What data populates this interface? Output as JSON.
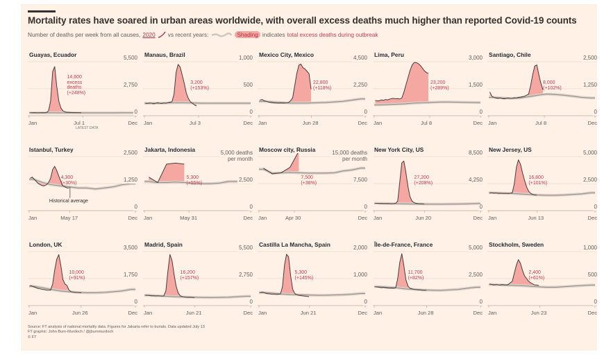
{
  "header": {
    "title": "Mortality rates have soared in urban areas worldwide, with overall excess deaths much higher than reported Covid-19 counts",
    "subtitle_prefix": "Number of deaths per week from all causes,",
    "legend_2020": "2020",
    "legend_recent": "vs recent years:",
    "legend_shading": "Shading",
    "legend_indicates": "indicates",
    "legend_excess": "total excess deaths during outbreak"
  },
  "colors": {
    "background": "#fff1e5",
    "line_2020": "#4a3a3a",
    "excess_fill": "#f4a09a",
    "annotation": "#cc3a52",
    "recent_years": "#8f8a85",
    "recent_band": "#ddd3ca"
  },
  "footer": {
    "source": "Source: FT analysis of national mortality data. Figures for Jakarta refer to burials. Data updated July 13",
    "credit": "FT graphic: John Burn-Murdoch / @jburnmurdoch",
    "copyright": "© FT"
  },
  "chart_data": [
    {
      "type": "area",
      "title": "Guayas, Ecuador",
      "yticks": [
        "5,500",
        "2,750",
        "0"
      ],
      "ylim": [
        0,
        5500
      ],
      "xticks": [
        "Jan",
        "Jul 1",
        "Dec"
      ],
      "x_note": "LATEST DATA",
      "period": "week",
      "values_2020": [
        300,
        300,
        310,
        300,
        290,
        300,
        310,
        300,
        320,
        500,
        1500,
        4500,
        5000,
        3000,
        1500,
        800,
        500,
        400,
        350,
        340,
        330,
        320,
        320,
        310,
        310,
        300
      ],
      "baseline": [
        300,
        300,
        300,
        290,
        290,
        290,
        290,
        290,
        290,
        290,
        300,
        300
      ],
      "annotation": [
        "14,600",
        "excess",
        "deaths",
        "(+248%)"
      ]
    },
    {
      "type": "area",
      "title": "Manaus, Brazil",
      "yticks": [
        "1,000",
        "500",
        "0"
      ],
      "ylim": [
        0,
        1000
      ],
      "xticks": [
        "Jan",
        "Jul 3",
        "Dec"
      ],
      "period": "week",
      "values_2020": [
        230,
        225,
        235,
        230,
        220,
        230,
        240,
        230,
        225,
        235,
        230,
        240,
        250,
        260,
        400,
        800,
        950,
        900,
        750,
        600,
        420,
        320,
        260,
        230,
        200,
        180
      ],
      "baseline": [
        230,
        230,
        235,
        240,
        240,
        235,
        230,
        230,
        230,
        230,
        230,
        230
      ],
      "annotation": [
        "3,200",
        "(+153%)"
      ]
    },
    {
      "type": "area",
      "title": "Mexico City, Mexico",
      "yticks": [
        "4,500",
        "2,250",
        "0"
      ],
      "ylim": [
        0,
        4500
      ],
      "xticks": [
        "Jan",
        "Jun 28",
        "Dec"
      ],
      "period": "week",
      "values_2020": [
        1300,
        1350,
        1250,
        1200,
        1150,
        1100,
        1080,
        1050,
        1050,
        1040,
        1050,
        1060,
        1050,
        1070,
        1100,
        1250,
        1500,
        2500,
        3500,
        4200,
        4300,
        4000,
        3900,
        3700,
        3500,
        2200
      ],
      "baseline": [
        1200,
        1150,
        1100,
        1050,
        1050,
        1050,
        1080,
        1100,
        1150,
        1200,
        1300,
        1400
      ],
      "annotation": [
        "22,800",
        "(+118%)"
      ]
    },
    {
      "type": "area",
      "title": "Lima, Peru",
      "yticks": [
        "3,000",
        "1,500",
        "0"
      ],
      "ylim": [
        0,
        3000
      ],
      "xticks": [
        "Jan",
        "Jul 8",
        "Dec"
      ],
      "period": "week",
      "values_2020": [
        850,
        820,
        830,
        880,
        850,
        900,
        880,
        920,
        950,
        960,
        940,
        950,
        930,
        980,
        1300,
        1700,
        2100,
        2500,
        2800,
        2950,
        2950,
        2900,
        2800,
        2650,
        2500,
        2400,
        2350
      ],
      "baseline": [
        600,
        620,
        640,
        660,
        700,
        720,
        740,
        760,
        760,
        750,
        740,
        730
      ],
      "annotation": [
        "23,200",
        "(+289%)"
      ]
    },
    {
      "type": "area",
      "title": "Santiago, Chile",
      "yticks": [
        "2,500",
        "1,250",
        "0"
      ],
      "ylim": [
        0,
        2500
      ],
      "xticks": [
        "Jan",
        "Jul 8",
        "Dec"
      ],
      "period": "week",
      "values_2020": [
        1100,
        900,
        850,
        820,
        800,
        820,
        800,
        780,
        800,
        820,
        800,
        810,
        830,
        820,
        850,
        860,
        880,
        900,
        950,
        1000,
        1400,
        1900,
        2300,
        2350,
        1900,
        1500,
        1200
      ],
      "baseline": [
        850,
        820,
        800,
        820,
        880,
        950,
        1000,
        980,
        950,
        900,
        850,
        820
      ],
      "annotation": [
        "8,000",
        "(+102%)"
      ]
    },
    {
      "type": "area",
      "title": "Istanbul, Turkey",
      "yticks": [
        "2,500",
        "1,250",
        "0"
      ],
      "ylim": [
        0,
        2500
      ],
      "xticks": [
        "Jan",
        "May 17",
        "Dec"
      ],
      "period": "week",
      "values_2020": [
        1500,
        1550,
        1450,
        1350,
        1250,
        1200,
        1150,
        1150,
        1200,
        1300,
        1500,
        1900,
        2050,
        1850,
        1600,
        1350,
        1150,
        1100,
        1050,
        1050
      ],
      "baseline": [
        1450,
        1300,
        1200,
        1150,
        1100,
        1050,
        1050,
        1000,
        1050,
        1100,
        1200,
        1250
      ],
      "annotation": [
        "4,300",
        "(+30%)"
      ],
      "baseline_label": "Historical average"
    },
    {
      "type": "area",
      "title": "Jakarta, Indonesia",
      "yticks": [
        "5,000 deaths",
        "per month",
        "2,500",
        "0"
      ],
      "ylim": [
        0,
        5000
      ],
      "xticks": [
        "Jan",
        "May 31",
        "Dec"
      ],
      "period": "month",
      "values_2020": [
        3100,
        2600,
        4300,
        4400,
        4300
      ],
      "baseline": [
        2700,
        2600,
        2600,
        2650,
        2600,
        2500,
        2500,
        2500,
        2550,
        2700,
        2700,
        2600
      ],
      "annotation": [
        "5,300",
        "(+55%)"
      ]
    },
    {
      "type": "area",
      "title": "Moscow city, Russia",
      "yticks": [
        "15,000 deaths",
        "per month",
        "7,500",
        "0"
      ],
      "ylim": [
        0,
        15000
      ],
      "xticks": [
        "Jan",
        "Apr 30",
        "Dec"
      ],
      "period": "month",
      "values_2020": [
        11800,
        10200,
        10500,
        12000,
        16500
      ],
      "baseline": [
        11500,
        10400,
        10500,
        10600,
        10500,
        10400,
        10400,
        10400,
        10500,
        11000,
        11300,
        11800
      ],
      "annotation": [
        "7,500",
        "(+38%)"
      ]
    },
    {
      "type": "area",
      "title": "New York City, US",
      "yticks": [
        "8,500",
        "4,250",
        "0"
      ],
      "ylim": [
        0,
        8500
      ],
      "xticks": [
        "Jan",
        "Jun 20",
        "Dec"
      ],
      "period": "week",
      "values_2020": [
        1150,
        1150,
        1120,
        1130,
        1100,
        1100,
        1120,
        1100,
        1080,
        1100,
        1150,
        1500,
        4500,
        7500,
        7800,
        6000,
        3800,
        2200,
        1500,
        1250,
        1150,
        1100,
        1080,
        1080,
        1050
      ],
      "baseline": [
        1150,
        1120,
        1100,
        1080,
        1050,
        1030,
        1020,
        1020,
        1030,
        1050,
        1080,
        1120
      ],
      "annotation": [
        "27,200",
        "(+208%)"
      ]
    },
    {
      "type": "area",
      "title": "New Jersey, US",
      "yticks": [
        "5,000",
        "2,500",
        "0"
      ],
      "ylim": [
        0,
        5000
      ],
      "xticks": [
        "Jan",
        "Jun 13",
        "Dec"
      ],
      "period": "week",
      "values_2020": [
        1650,
        1650,
        1620,
        1640,
        1600,
        1610,
        1600,
        1590,
        1600,
        1580,
        1600,
        1650,
        2500,
        4000,
        4700,
        4300,
        3500,
        2800,
        2200,
        1800,
        1600,
        1500,
        1450,
        1450
      ],
      "baseline": [
        1650,
        1620,
        1600,
        1550,
        1500,
        1450,
        1420,
        1420,
        1450,
        1500,
        1550,
        1650
      ],
      "annotation": [
        "16,800",
        "(+101%)"
      ]
    },
    {
      "type": "area",
      "title": "London, UK",
      "yticks": [
        "3,500",
        "1,750",
        "0"
      ],
      "ylim": [
        0,
        3500
      ],
      "xticks": [
        "Jan",
        "Jun 26",
        "Dec"
      ],
      "period": "week",
      "values_2020": [
        1300,
        1250,
        1200,
        1150,
        1100,
        1080,
        1050,
        1030,
        1000,
        1000,
        1000,
        1400,
        2300,
        3000,
        3300,
        2600,
        1700,
        1400,
        1300,
        1000,
        900,
        870,
        850,
        850,
        840,
        830
      ],
      "baseline": [
        1250,
        1150,
        1050,
        950,
        900,
        850,
        830,
        830,
        850,
        900,
        950,
        1050
      ],
      "annotation": [
        "10,000",
        "(+91%)"
      ]
    },
    {
      "type": "area",
      "title": "Madrid, Spain",
      "yticks": [
        "5,500",
        "2,750",
        "0"
      ],
      "ylim": [
        0,
        5500
      ],
      "xticks": [
        "Jan",
        "Jun 21",
        "Dec"
      ],
      "period": "week",
      "values_2020": [
        1050,
        1050,
        1030,
        1000,
        1000,
        980,
        1000,
        990,
        970,
        980,
        1500,
        3500,
        5200,
        4600,
        3200,
        2000,
        1300,
        1000,
        900,
        870,
        850,
        840,
        850,
        830,
        820
      ],
      "baseline": [
        1050,
        1000,
        950,
        900,
        880,
        850,
        830,
        820,
        830,
        850,
        900,
        950
      ],
      "annotation": [
        "16,200",
        "(+157%)"
      ]
    },
    {
      "type": "area",
      "title": "Castilla La Mancha, Spain",
      "yticks": [
        "2,000",
        "1,000",
        "0"
      ],
      "ylim": [
        0,
        2000
      ],
      "xticks": [
        "Jan",
        "Jun 21",
        "Dec"
      ],
      "period": "week",
      "values_2020": [
        470,
        500,
        480,
        450,
        440,
        430,
        420,
        420,
        410,
        420,
        430,
        700,
        1500,
        1900,
        1800,
        1100,
        600,
        450,
        400,
        380,
        370,
        360,
        350,
        340,
        330
      ],
      "baseline": [
        480,
        460,
        430,
        410,
        400,
        390,
        380,
        380,
        390,
        400,
        420,
        450
      ],
      "annotation": [
        "5,300",
        "(+145%)"
      ]
    },
    {
      "type": "area",
      "title": "Île-de-France, France",
      "yticks": [
        "5,000",
        "2,500",
        "0"
      ],
      "ylim": [
        0,
        5000
      ],
      "xticks": [
        "Jan",
        "Jun 28",
        "Dec"
      ],
      "period": "week",
      "values_2020": [
        1750,
        1720,
        1700,
        1650,
        1680,
        1650,
        1620,
        1600,
        1620,
        1600,
        1650,
        2500,
        4000,
        4800,
        3700,
        2400,
        1800,
        1600,
        1550,
        1500,
        1480,
        1450,
        1450,
        1420,
        1430,
        1420
      ],
      "baseline": [
        1750,
        1700,
        1650,
        1550,
        1500,
        1450,
        1420,
        1400,
        1450,
        1500,
        1600,
        1700
      ],
      "annotation": [
        "11,700",
        "(+82%)"
      ]
    },
    {
      "type": "area",
      "title": "Stockholm, Sweden",
      "yticks": [
        "1,000",
        "500",
        "0"
      ],
      "ylim": [
        0,
        1000
      ],
      "xticks": [
        "Jan",
        "Jun 23",
        "Dec"
      ],
      "period": "week",
      "values_2020": [
        400,
        390,
        380,
        390,
        385,
        380,
        390,
        385,
        380,
        390,
        420,
        450,
        600,
        750,
        850,
        780,
        650,
        550,
        500,
        450,
        420,
        400,
        380,
        380,
        370
      ],
      "baseline": [
        390,
        380,
        375,
        370,
        360,
        350,
        340,
        340,
        350,
        360,
        370,
        380
      ],
      "annotation": [
        "2,400",
        "(+61%)"
      ]
    }
  ]
}
